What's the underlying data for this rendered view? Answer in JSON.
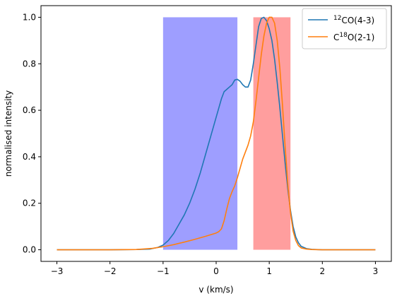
{
  "chart_data": {
    "type": "line",
    "xlabel": "v (km/s)",
    "ylabel": "normalised intensity",
    "xlim": [
      -3.3,
      3.3
    ],
    "ylim": [
      -0.05,
      1.05
    ],
    "xticks": [
      -3,
      -2,
      -1,
      0,
      1,
      2,
      3
    ],
    "yticks": [
      0.0,
      0.2,
      0.4,
      0.6,
      0.8,
      1.0
    ],
    "xtick_labels": [
      "−3",
      "−2",
      "−1",
      "0",
      "1",
      "2",
      "3"
    ],
    "ytick_labels": [
      "0.0",
      "0.2",
      "0.4",
      "0.6",
      "0.8",
      "1.0"
    ],
    "grid": false,
    "legend_position": "top-right",
    "shaded_regions": [
      {
        "name": "blue-band",
        "x": [
          -1.0,
          0.4
        ],
        "y": [
          0.0,
          1.0
        ],
        "color": "#9e9eff"
      },
      {
        "name": "red-band",
        "x": [
          0.7,
          1.4
        ],
        "y": [
          0.0,
          1.0
        ],
        "color": "#ff9e9e"
      }
    ],
    "series": [
      {
        "name_base": "CO(4-3)",
        "name_sup_pre": "12",
        "name_layout": "pre",
        "color": "#1f77b4",
        "x": [
          -3.0,
          -2.0,
          -1.5,
          -1.25,
          -1.1,
          -1.0,
          -0.9,
          -0.8,
          -0.7,
          -0.6,
          -0.5,
          -0.4,
          -0.3,
          -0.2,
          -0.1,
          0.0,
          0.05,
          0.1,
          0.15,
          0.2,
          0.25,
          0.3,
          0.35,
          0.4,
          0.45,
          0.5,
          0.55,
          0.6,
          0.65,
          0.7,
          0.75,
          0.8,
          0.85,
          0.9,
          0.95,
          1.0,
          1.05,
          1.1,
          1.15,
          1.2,
          1.25,
          1.3,
          1.35,
          1.4,
          1.45,
          1.5,
          1.55,
          1.6,
          1.7,
          1.8,
          2.0,
          2.5,
          3.0
        ],
        "y": [
          0.0,
          0.0,
          0.001,
          0.003,
          0.01,
          0.02,
          0.04,
          0.07,
          0.11,
          0.15,
          0.2,
          0.26,
          0.33,
          0.41,
          0.49,
          0.57,
          0.61,
          0.65,
          0.68,
          0.69,
          0.7,
          0.71,
          0.73,
          0.733,
          0.725,
          0.71,
          0.7,
          0.7,
          0.73,
          0.8,
          0.88,
          0.96,
          0.995,
          1.0,
          0.985,
          0.95,
          0.9,
          0.82,
          0.72,
          0.61,
          0.49,
          0.37,
          0.26,
          0.17,
          0.1,
          0.055,
          0.03,
          0.015,
          0.005,
          0.002,
          0.0,
          0.0,
          0.0
        ]
      },
      {
        "name_base": "O(2-1)",
        "name_prefix": "C",
        "name_sup_mid": "18",
        "name_layout": "mid",
        "color": "#ff7f0e",
        "x": [
          -3.0,
          -2.0,
          -1.5,
          -1.2,
          -1.0,
          -0.8,
          -0.6,
          -0.4,
          -0.2,
          0.0,
          0.05,
          0.1,
          0.15,
          0.2,
          0.25,
          0.3,
          0.35,
          0.4,
          0.45,
          0.5,
          0.55,
          0.6,
          0.65,
          0.7,
          0.75,
          0.8,
          0.85,
          0.9,
          0.95,
          1.0,
          1.05,
          1.1,
          1.15,
          1.2,
          1.25,
          1.3,
          1.35,
          1.4,
          1.45,
          1.5,
          1.55,
          1.6,
          1.7,
          1.8,
          2.0,
          2.5,
          3.0
        ],
        "y": [
          0.0,
          0.0,
          0.001,
          0.006,
          0.013,
          0.022,
          0.033,
          0.045,
          0.058,
          0.072,
          0.078,
          0.09,
          0.125,
          0.175,
          0.22,
          0.25,
          0.275,
          0.31,
          0.35,
          0.39,
          0.42,
          0.45,
          0.49,
          0.55,
          0.64,
          0.74,
          0.84,
          0.92,
          0.975,
          1.0,
          1.0,
          0.975,
          0.9,
          0.78,
          0.62,
          0.44,
          0.28,
          0.16,
          0.08,
          0.04,
          0.018,
          0.008,
          0.003,
          0.001,
          0.0,
          0.0,
          0.0
        ]
      }
    ]
  }
}
